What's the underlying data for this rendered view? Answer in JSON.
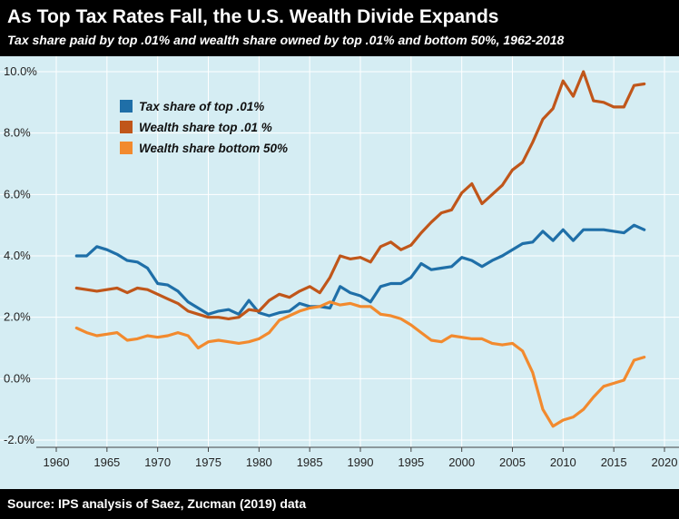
{
  "header": {
    "title": "As Top Tax Rates Fall, the U.S. Wealth Divide Expands",
    "subtitle": "Tax share paid by top .01% and wealth share owned by top .01% and bottom 50%, 1962-2018"
  },
  "footer": {
    "source": "Source: IPS analysis of Saez, Zucman (2019) data"
  },
  "colors": {
    "background": "#000000",
    "plot_background": "#d5edf3",
    "grid": "#ffffff"
  },
  "chart_data": {
    "type": "line",
    "title": "As Top Tax Rates Fall, the U.S. Wealth Divide Expands",
    "subtitle": "Tax share paid by top .01% and wealth share owned by top .01% and bottom 50%, 1962-2018",
    "xlabel": "",
    "ylabel": "",
    "xlim": [
      1960,
      2020
    ],
    "ylim": [
      -2.0,
      10.0
    ],
    "x_ticks": [
      1960,
      1965,
      1970,
      1975,
      1980,
      1985,
      1990,
      1995,
      2000,
      2005,
      2010,
      2015,
      2020
    ],
    "y_ticks": [
      -2.0,
      0.0,
      2.0,
      4.0,
      6.0,
      8.0,
      10.0
    ],
    "y_tick_labels": [
      "-2.0%",
      "0.0%",
      "2.0%",
      "4.0%",
      "6.0%",
      "8.0%",
      "10.0%"
    ],
    "grid": true,
    "legend": "top-left",
    "series": [
      {
        "name": "Tax share of top .01%",
        "color": "#1f6fa8",
        "x": [
          1962,
          1963,
          1964,
          1965,
          1966,
          1967,
          1968,
          1969,
          1970,
          1971,
          1972,
          1973,
          1974,
          1975,
          1976,
          1977,
          1978,
          1979,
          1980,
          1981,
          1982,
          1983,
          1984,
          1985,
          1986,
          1987,
          1988,
          1989,
          1990,
          1991,
          1992,
          1993,
          1994,
          1995,
          1996,
          1997,
          1998,
          1999,
          2000,
          2001,
          2002,
          2003,
          2004,
          2005,
          2006,
          2007,
          2008,
          2009,
          2010,
          2011,
          2012,
          2013,
          2014,
          2015,
          2016,
          2017,
          2018
        ],
        "values": [
          4.0,
          4.0,
          4.3,
          4.2,
          4.05,
          3.85,
          3.8,
          3.6,
          3.1,
          3.05,
          2.85,
          2.5,
          2.3,
          2.1,
          2.2,
          2.25,
          2.1,
          2.55,
          2.15,
          2.05,
          2.15,
          2.2,
          2.45,
          2.35,
          2.35,
          2.3,
          3.0,
          2.8,
          2.7,
          2.5,
          3.0,
          3.1,
          3.1,
          3.3,
          3.75,
          3.55,
          3.6,
          3.65,
          3.95,
          3.85,
          3.65,
          3.85,
          4.0,
          4.2,
          4.4,
          4.45,
          4.8,
          4.5,
          4.85,
          4.5,
          4.85,
          4.85,
          4.85,
          4.8,
          4.75,
          5.0,
          4.85
        ]
      },
      {
        "name": "Wealth share top .01 %",
        "color": "#c0561a",
        "x": [
          1962,
          1963,
          1964,
          1965,
          1966,
          1967,
          1968,
          1969,
          1970,
          1971,
          1972,
          1973,
          1974,
          1975,
          1976,
          1977,
          1978,
          1979,
          1980,
          1981,
          1982,
          1983,
          1984,
          1985,
          1986,
          1987,
          1988,
          1989,
          1990,
          1991,
          1992,
          1993,
          1994,
          1995,
          1996,
          1997,
          1998,
          1999,
          2000,
          2001,
          2002,
          2003,
          2004,
          2005,
          2006,
          2007,
          2008,
          2009,
          2010,
          2011,
          2012,
          2013,
          2014,
          2015,
          2016,
          2017,
          2018
        ],
        "values": [
          2.95,
          2.9,
          2.85,
          2.9,
          2.95,
          2.8,
          2.95,
          2.9,
          2.75,
          2.6,
          2.45,
          2.2,
          2.1,
          2.0,
          2.0,
          1.95,
          2.0,
          2.25,
          2.2,
          2.55,
          2.75,
          2.65,
          2.85,
          3.0,
          2.8,
          3.3,
          4.0,
          3.9,
          3.95,
          3.8,
          4.3,
          4.45,
          4.2,
          4.35,
          4.75,
          5.1,
          5.4,
          5.5,
          6.05,
          6.35,
          5.7,
          6.0,
          6.3,
          6.8,
          7.05,
          7.7,
          8.45,
          8.8,
          9.7,
          9.2,
          10.0,
          9.05,
          9.0,
          8.85,
          8.85,
          9.55,
          9.6
        ]
      },
      {
        "name": "Wealth share bottom 50%",
        "color": "#f28a2e",
        "x": [
          1962,
          1963,
          1964,
          1965,
          1966,
          1967,
          1968,
          1969,
          1970,
          1971,
          1972,
          1973,
          1974,
          1975,
          1976,
          1977,
          1978,
          1979,
          1980,
          1981,
          1982,
          1983,
          1984,
          1985,
          1986,
          1987,
          1988,
          1989,
          1990,
          1991,
          1992,
          1993,
          1994,
          1995,
          1996,
          1997,
          1998,
          1999,
          2000,
          2001,
          2002,
          2003,
          2004,
          2005,
          2006,
          2007,
          2008,
          2009,
          2010,
          2011,
          2012,
          2013,
          2014,
          2015,
          2016,
          2017,
          2018
        ],
        "values": [
          1.65,
          1.5,
          1.4,
          1.45,
          1.5,
          1.25,
          1.3,
          1.4,
          1.35,
          1.4,
          1.5,
          1.4,
          1.0,
          1.2,
          1.25,
          1.2,
          1.15,
          1.2,
          1.3,
          1.5,
          1.9,
          2.05,
          2.2,
          2.3,
          2.35,
          2.5,
          2.4,
          2.45,
          2.35,
          2.35,
          2.1,
          2.05,
          1.95,
          1.75,
          1.5,
          1.25,
          1.2,
          1.4,
          1.35,
          1.3,
          1.3,
          1.15,
          1.1,
          1.15,
          0.9,
          0.2,
          -1.0,
          -1.55,
          -1.35,
          -1.25,
          -1.0,
          -0.6,
          -0.25,
          -0.15,
          -0.05,
          0.6,
          0.7
        ]
      }
    ]
  }
}
